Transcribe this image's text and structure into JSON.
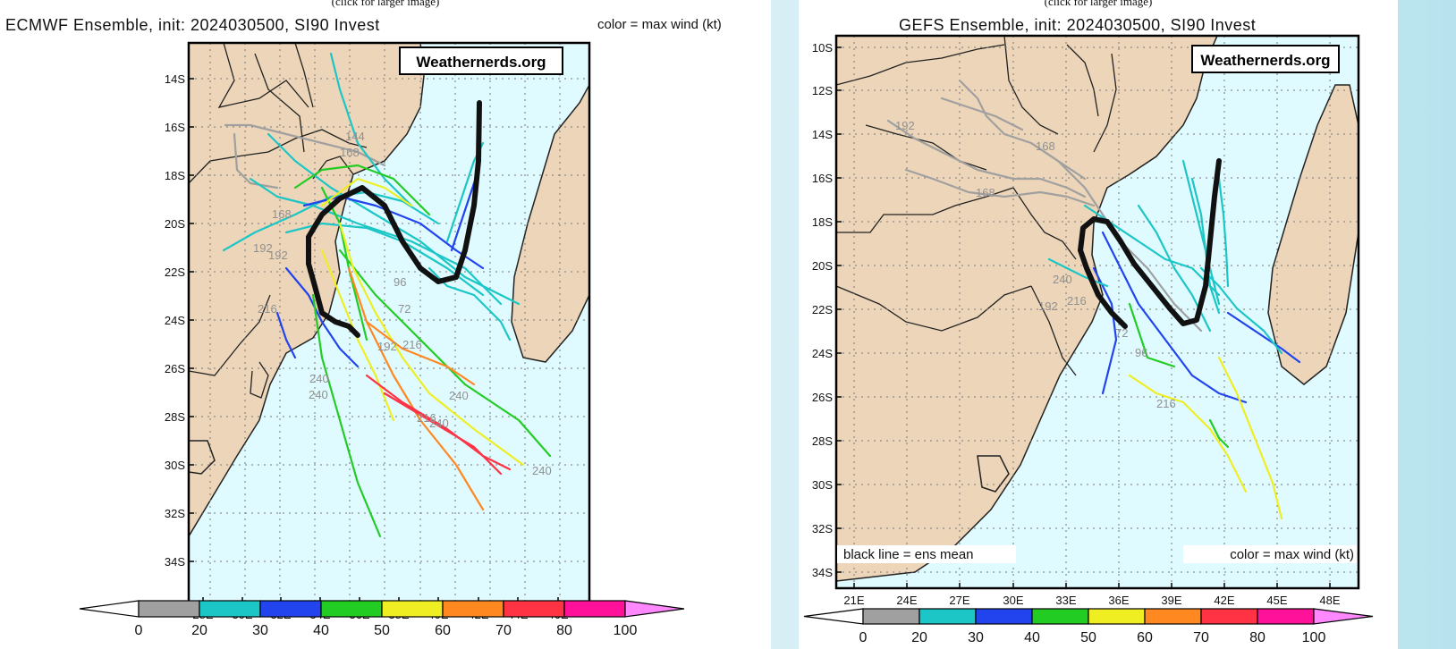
{
  "caption": "(click for larger image)",
  "left": {
    "title": "ECMWF Ensemble, init: 2024030500, SI90 Invest",
    "legend_note": "color = max wind (kt)",
    "watermark": "Weathernerds.org",
    "lat_labels": [
      "14S",
      "16S",
      "18S",
      "20S",
      "22S",
      "24S",
      "26S",
      "28S",
      "30S",
      "32S",
      "34S"
    ],
    "lon_labels": [
      "28E",
      "30E",
      "32E",
      "34E",
      "36E",
      "38E",
      "40E",
      "42E",
      "44E",
      "46E"
    ],
    "hour_labels": [
      "144",
      "168",
      "192",
      "192",
      "168",
      "216",
      "240",
      "240",
      "240",
      "240",
      "240",
      "216",
      "96",
      "72",
      "192",
      "216"
    ]
  },
  "right": {
    "title": "GEFS Ensemble, init: 2024030500, SI90 Invest",
    "legend_note": "color = max wind (kt)",
    "mean_note": "black line = ens mean",
    "watermark": "Weathernerds.org",
    "lat_labels": [
      "10S",
      "12S",
      "14S",
      "16S",
      "18S",
      "20S",
      "22S",
      "24S",
      "26S",
      "28S",
      "30S",
      "32S",
      "34S"
    ],
    "lon_labels": [
      "21E",
      "24E",
      "27E",
      "30E",
      "33E",
      "36E",
      "39E",
      "42E",
      "45E",
      "48E"
    ],
    "hour_labels": [
      "192",
      "168",
      "168",
      "240",
      "216",
      "192",
      "72",
      "96",
      "216"
    ]
  },
  "colorbar": {
    "ticks": [
      "0",
      "20",
      "30",
      "40",
      "50",
      "60",
      "70",
      "80",
      "100"
    ],
    "colors": [
      "#a0a0a0",
      "#1cc6c6",
      "#2244ee",
      "#22cc22",
      "#eeee22",
      "#ff8820",
      "#ff3344",
      "#ff1199"
    ]
  }
}
